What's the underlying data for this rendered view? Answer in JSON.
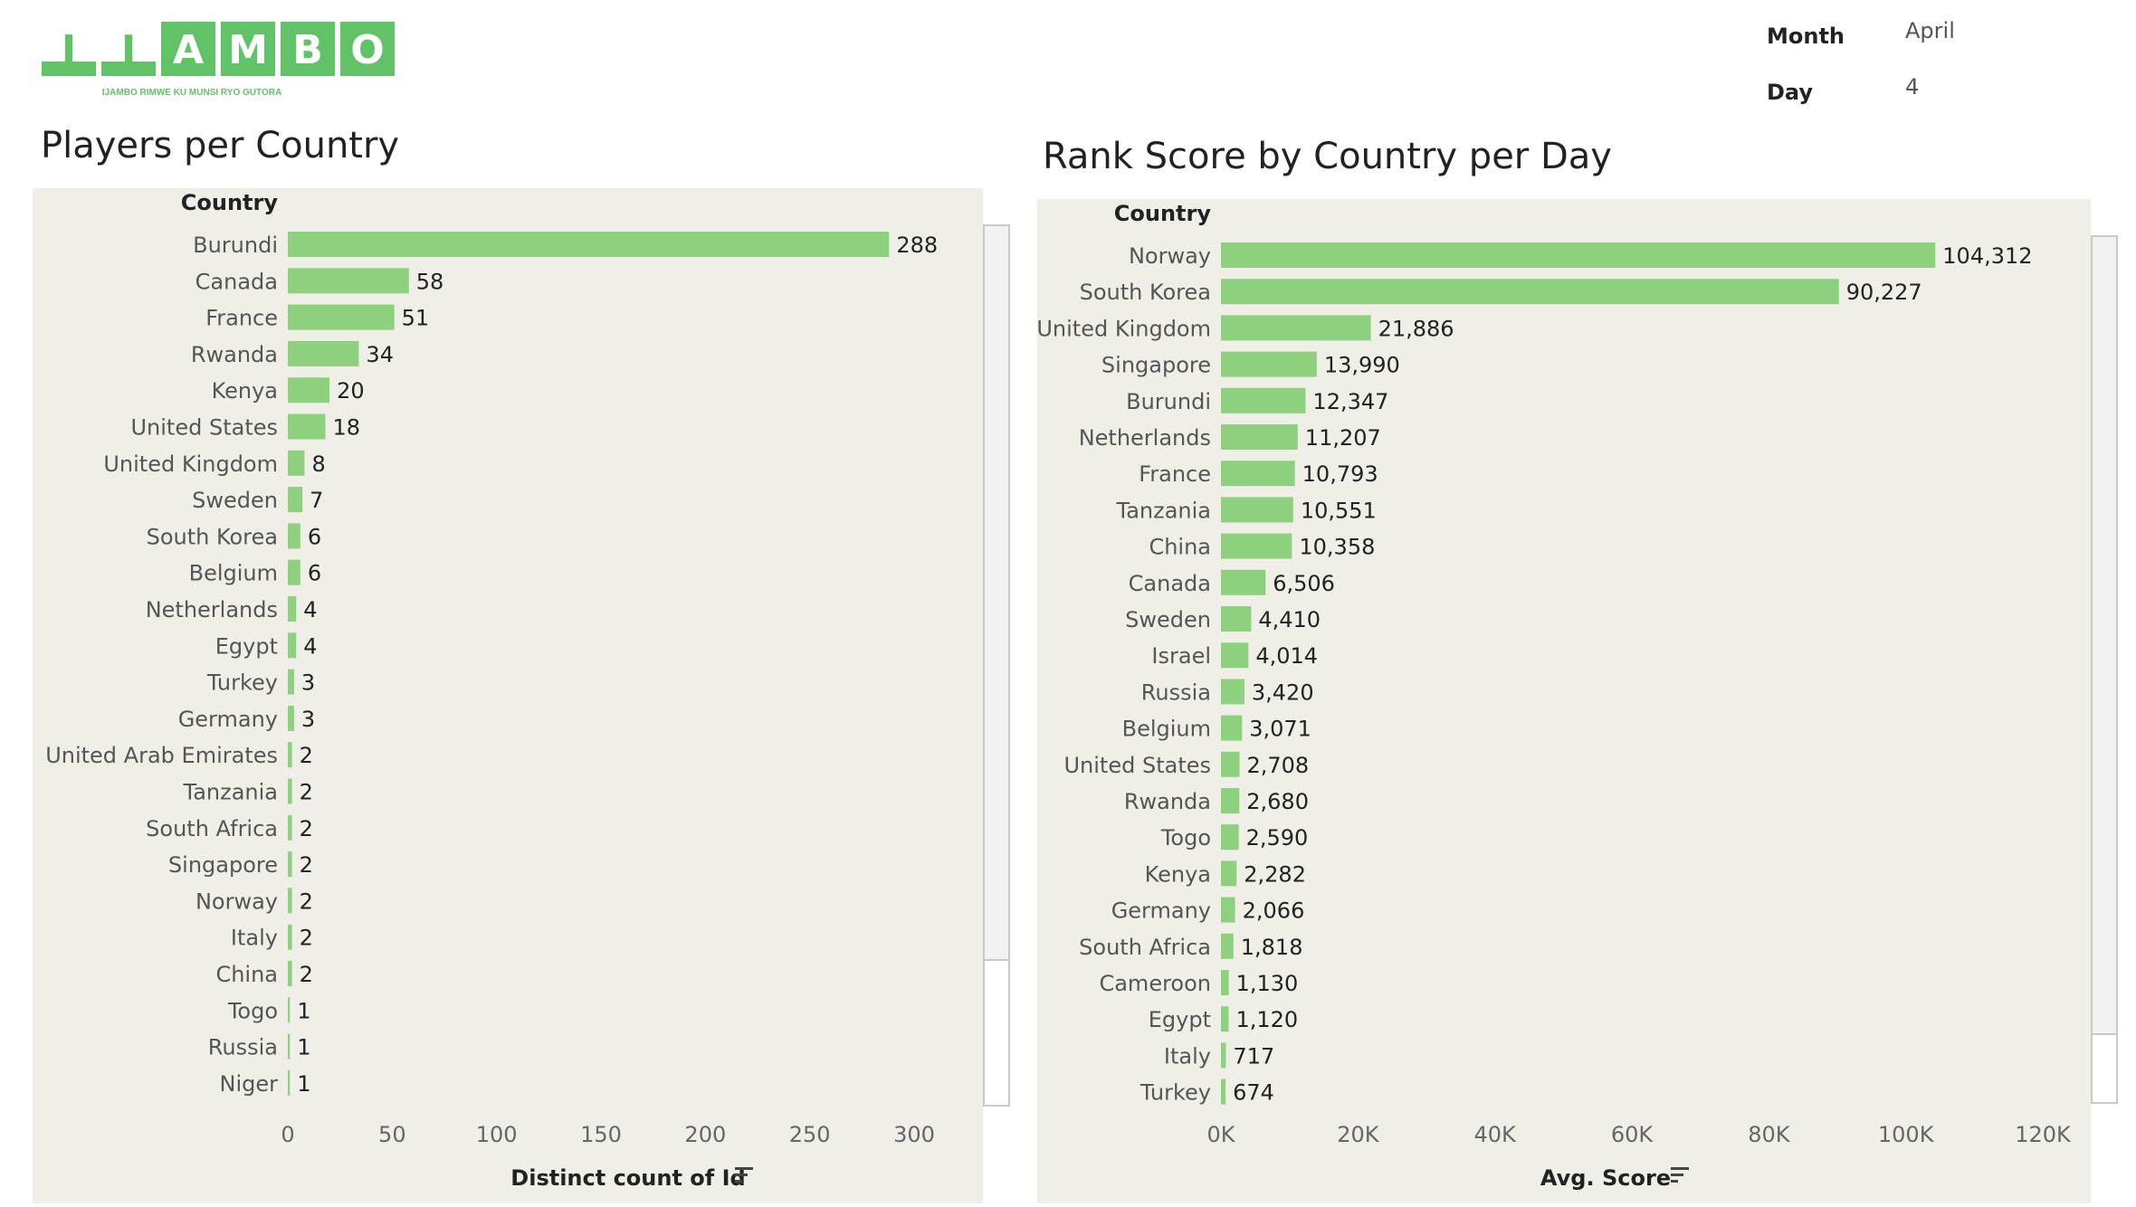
{
  "brand": {
    "logo_letters": [
      "I",
      "J",
      "A",
      "M",
      "B",
      "O"
    ],
    "tagline": "IJAMBO RIMWE KU MUNSI RYO GUTORA",
    "color": "#62c267"
  },
  "filters": {
    "month_label": "Month",
    "month_value": "April",
    "day_label": "Day",
    "day_value": "4"
  },
  "colors": {
    "bar": "#8dd17e",
    "panel": "#efefe8"
  },
  "chart_data": [
    {
      "type": "bar",
      "orientation": "horizontal",
      "title": "Players per Country",
      "category_label": "Country",
      "xlabel": "Distinct count of Id",
      "xlim": [
        0,
        300
      ],
      "x_ticks": [
        "0",
        "50",
        "100",
        "150",
        "200",
        "250",
        "300"
      ],
      "value_labels": [
        "288",
        "58",
        "51",
        "34",
        "20",
        "18",
        "8",
        "7",
        "6",
        "6",
        "4",
        "4",
        "3",
        "3",
        "2",
        "2",
        "2",
        "2",
        "2",
        "2",
        "2",
        "1",
        "1",
        "1"
      ],
      "categories": [
        "Burundi",
        "Canada",
        "France",
        "Rwanda",
        "Kenya",
        "United States",
        "United Kingdom",
        "Sweden",
        "South Korea",
        "Belgium",
        "Netherlands",
        "Egypt",
        "Turkey",
        "Germany",
        "United Arab Emirates",
        "Tanzania",
        "South Africa",
        "Singapore",
        "Norway",
        "Italy",
        "China",
        "Togo",
        "Russia",
        "Niger"
      ],
      "values": [
        288,
        58,
        51,
        34,
        20,
        18,
        8,
        7,
        6,
        6,
        4,
        4,
        3,
        3,
        2,
        2,
        2,
        2,
        2,
        2,
        2,
        1,
        1,
        1
      ],
      "sorted": "descending"
    },
    {
      "type": "bar",
      "orientation": "horizontal",
      "title": "Rank Score by Country per Day",
      "category_label": "Country",
      "xlabel": "Avg. Score",
      "xlim": [
        0,
        120000
      ],
      "x_ticks": [
        "0K",
        "20K",
        "40K",
        "60K",
        "80K",
        "100K",
        "120K"
      ],
      "value_labels": [
        "104,312",
        "90,227",
        "21,886",
        "13,990",
        "12,347",
        "11,207",
        "10,793",
        "10,551",
        "10,358",
        "6,506",
        "4,410",
        "4,014",
        "3,420",
        "3,071",
        "2,708",
        "2,680",
        "2,590",
        "2,282",
        "2,066",
        "1,818",
        "1,130",
        "1,120",
        "717",
        "674"
      ],
      "categories": [
        "Norway",
        "South Korea",
        "United Kingdom",
        "Singapore",
        "Burundi",
        "Netherlands",
        "France",
        "Tanzania",
        "China",
        "Canada",
        "Sweden",
        "Israel",
        "Russia",
        "Belgium",
        "United States",
        "Rwanda",
        "Togo",
        "Kenya",
        "Germany",
        "South Africa",
        "Cameroon",
        "Egypt",
        "Italy",
        "Turkey"
      ],
      "values": [
        104312,
        90227,
        21886,
        13990,
        12347,
        11207,
        10793,
        10551,
        10358,
        6506,
        4410,
        4014,
        3420,
        3071,
        2708,
        2680,
        2590,
        2282,
        2066,
        1818,
        1130,
        1120,
        717,
        674
      ],
      "sorted": "descending"
    }
  ]
}
